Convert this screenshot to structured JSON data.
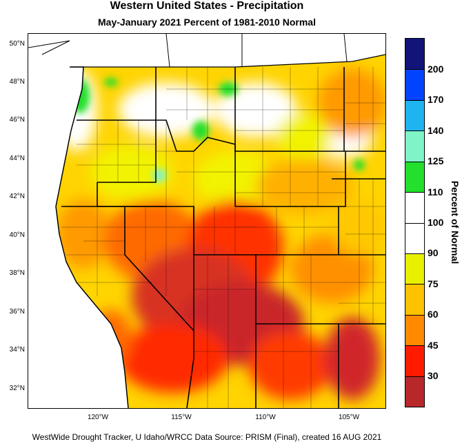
{
  "title": "Western United States - Precipitation",
  "subtitle": "May-January 2021  Percent of 1981-2010 Normal",
  "latitude_labels": [
    "50°N",
    "48°N",
    "46°N",
    "44°N",
    "42°N",
    "40°N",
    "38°N",
    "36°N",
    "34°N",
    "32°N"
  ],
  "longitude_labels": [
    "120°W",
    "115°W",
    "110°W",
    "105°W"
  ],
  "legend": {
    "title": "Percent of Normal",
    "labels": [
      "200",
      "170",
      "140",
      "125",
      "110",
      "100",
      "90",
      "75",
      "60",
      "45",
      "30"
    ],
    "colors": [
      "#13147a",
      "#0044ff",
      "#1fb3f0",
      "#7ff4c8",
      "#22e02b",
      "#ffffff",
      "#ffffff",
      "#e8f000",
      "#ffc200",
      "#ff8a00",
      "#ff1a00",
      "#b8272a"
    ]
  },
  "footer": "WestWide Drought Tracker, U Idaho/WRCC Data Source: PRISM (Final), created 16 AUG 2021"
}
